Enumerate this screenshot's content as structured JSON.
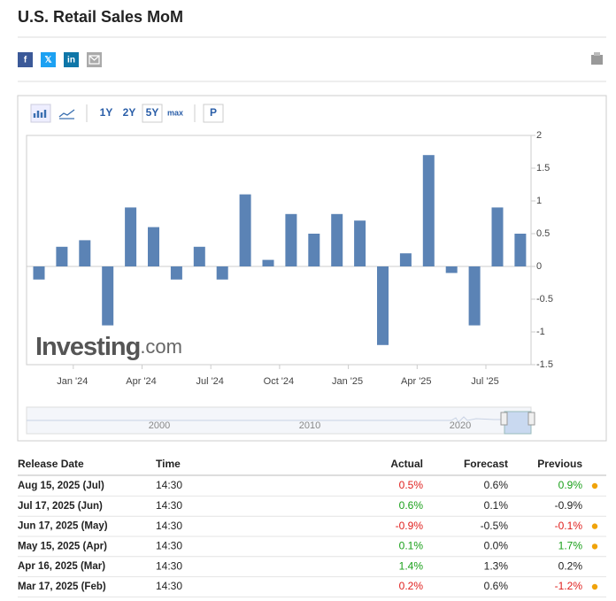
{
  "header": {
    "title": "U.S. Retail Sales MoM"
  },
  "share_buttons": [
    "f",
    "𝕏",
    "in"
  ],
  "toolbar": {
    "ranges": [
      "1Y",
      "2Y",
      "5Y",
      "max"
    ],
    "p": "P"
  },
  "chart_data": {
    "type": "bar",
    "categories": [
      null,
      null,
      "Jan '24",
      null,
      null,
      "Apr '24",
      null,
      null,
      "Jul '24",
      null,
      null,
      "Oct '24",
      null,
      null,
      "Jan '25",
      null,
      null,
      "Apr '25",
      null,
      null,
      "Jul '25",
      null
    ],
    "values": [
      -0.2,
      0.3,
      0.4,
      -0.9,
      0.9,
      0.6,
      -0.2,
      0.3,
      -0.2,
      1.1,
      0.1,
      0.8,
      0.5,
      0.8,
      0.7,
      -1.2,
      0.2,
      1.7,
      -0.1,
      -0.9,
      0.9,
      0.5
    ],
    "color": "#5b83b5",
    "ylim": [
      -1.5,
      2
    ],
    "yticks": [
      -1.5,
      -1,
      -0.5,
      0,
      0.5,
      1,
      1.5,
      2
    ],
    "y_axis_side": "right",
    "grid": false
  },
  "watermark": {
    "brand": "Investing",
    "suffix": ".com"
  },
  "navigator": {
    "labels": [
      "2000",
      "2010",
      "2020"
    ]
  },
  "table": {
    "columns": [
      "Release Date",
      "Time",
      "Actual",
      "Forecast",
      "Previous"
    ],
    "rows": [
      {
        "date": "Aug 15, 2025 (Jul)",
        "time": "14:30",
        "actual": "0.5%",
        "forecast": "0.6%",
        "previous": "0.9%",
        "actual_color": "#e0201e",
        "previous_color": "#1aa01a",
        "revised": true
      },
      {
        "date": "Jul 17, 2025 (Jun)",
        "time": "14:30",
        "actual": "0.6%",
        "forecast": "0.1%",
        "previous": "-0.9%",
        "actual_color": "#1aa01a",
        "previous_color": "#222222",
        "revised": false
      },
      {
        "date": "Jun 17, 2025 (May)",
        "time": "14:30",
        "actual": "-0.9%",
        "forecast": "-0.5%",
        "previous": "-0.1%",
        "actual_color": "#e0201e",
        "previous_color": "#e0201e",
        "revised": true
      },
      {
        "date": "May 15, 2025 (Apr)",
        "time": "14:30",
        "actual": "0.1%",
        "forecast": "0.0%",
        "previous": "1.7%",
        "actual_color": "#1aa01a",
        "previous_color": "#1aa01a",
        "revised": true
      },
      {
        "date": "Apr 16, 2025 (Mar)",
        "time": "14:30",
        "actual": "1.4%",
        "forecast": "1.3%",
        "previous": "0.2%",
        "actual_color": "#1aa01a",
        "previous_color": "#222222",
        "revised": false
      },
      {
        "date": "Mar 17, 2025 (Feb)",
        "time": "14:30",
        "actual": "0.2%",
        "forecast": "0.6%",
        "previous": "-1.2%",
        "actual_color": "#e0201e",
        "previous_color": "#e0201e",
        "revised": true
      }
    ]
  }
}
